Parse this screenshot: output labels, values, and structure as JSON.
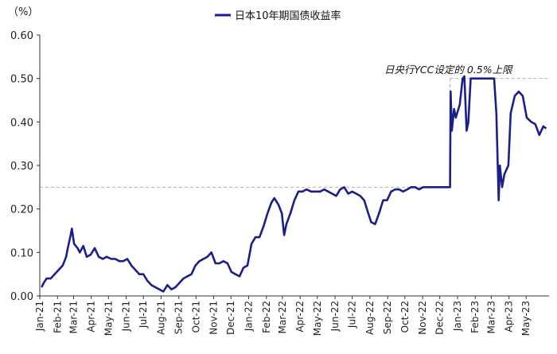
{
  "chart_data": {
    "type": "line",
    "unit_label": "（%）",
    "legend": {
      "label": "日本10年期国债收益率",
      "position": "top-center"
    },
    "ylim": [
      0,
      0.6
    ],
    "yticks": [
      "0.00",
      "0.10",
      "0.20",
      "0.30",
      "0.40",
      "0.50",
      "0.60"
    ],
    "yticks_values": [
      0,
      0.1,
      0.2,
      0.3,
      0.4,
      0.5,
      0.6
    ],
    "x_tick_labels": [
      "Jan-21",
      "Feb-21",
      "Mar-21",
      "Apr-21",
      "May-21",
      "Jun-21",
      "Jul-21",
      "Aug-21",
      "Sep-21",
      "Oct-21",
      "Nov-21",
      "Dec-21",
      "Jan-22",
      "Feb-22",
      "Mar-22",
      "Apr-22",
      "May-22",
      "Jun-22",
      "Jul-22",
      "Aug-22",
      "Sep-22",
      "Oct-22",
      "Nov-22",
      "Dec-22",
      "Jan-23",
      "Feb-23",
      "Mar-23",
      "Apr-23",
      "May-23"
    ],
    "x_range": [
      "2021-01-01",
      "2023-06-10"
    ],
    "grid": false,
    "series": [
      {
        "name": "日本10年期国债收益率",
        "color": "#1a1f8a",
        "points": [
          [
            "2021-01-04",
            0.02
          ],
          [
            "2021-01-08",
            0.03
          ],
          [
            "2021-01-13",
            0.04
          ],
          [
            "2021-01-20",
            0.04
          ],
          [
            "2021-01-27",
            0.05
          ],
          [
            "2021-02-03",
            0.06
          ],
          [
            "2021-02-10",
            0.07
          ],
          [
            "2021-02-16",
            0.09
          ],
          [
            "2021-02-19",
            0.11
          ],
          [
            "2021-02-24",
            0.14
          ],
          [
            "2021-02-26",
            0.155
          ],
          [
            "2021-03-02",
            0.12
          ],
          [
            "2021-03-08",
            0.11
          ],
          [
            "2021-03-12",
            0.1
          ],
          [
            "2021-03-18",
            0.115
          ],
          [
            "2021-03-24",
            0.09
          ],
          [
            "2021-03-31",
            0.095
          ],
          [
            "2021-04-07",
            0.11
          ],
          [
            "2021-04-14",
            0.09
          ],
          [
            "2021-04-21",
            0.085
          ],
          [
            "2021-04-28",
            0.09
          ],
          [
            "2021-05-06",
            0.085
          ],
          [
            "2021-05-13",
            0.085
          ],
          [
            "2021-05-20",
            0.08
          ],
          [
            "2021-05-27",
            0.08
          ],
          [
            "2021-06-03",
            0.085
          ],
          [
            "2021-06-10",
            0.07
          ],
          [
            "2021-06-17",
            0.06
          ],
          [
            "2021-06-24",
            0.05
          ],
          [
            "2021-07-01",
            0.05
          ],
          [
            "2021-07-08",
            0.035
          ],
          [
            "2021-07-15",
            0.025
          ],
          [
            "2021-07-22",
            0.02
          ],
          [
            "2021-07-29",
            0.015
          ],
          [
            "2021-08-05",
            0.01
          ],
          [
            "2021-08-12",
            0.025
          ],
          [
            "2021-08-19",
            0.015
          ],
          [
            "2021-08-26",
            0.02
          ],
          [
            "2021-09-02",
            0.03
          ],
          [
            "2021-09-09",
            0.04
          ],
          [
            "2021-09-16",
            0.045
          ],
          [
            "2021-09-23",
            0.05
          ],
          [
            "2021-09-30",
            0.07
          ],
          [
            "2021-10-07",
            0.08
          ],
          [
            "2021-10-14",
            0.085
          ],
          [
            "2021-10-21",
            0.09
          ],
          [
            "2021-10-28",
            0.1
          ],
          [
            "2021-11-04",
            0.075
          ],
          [
            "2021-11-11",
            0.075
          ],
          [
            "2021-11-18",
            0.08
          ],
          [
            "2021-11-25",
            0.075
          ],
          [
            "2021-12-02",
            0.055
          ],
          [
            "2021-12-09",
            0.05
          ],
          [
            "2021-12-16",
            0.045
          ],
          [
            "2021-12-23",
            0.065
          ],
          [
            "2021-12-30",
            0.07
          ],
          [
            "2022-01-06",
            0.12
          ],
          [
            "2022-01-13",
            0.135
          ],
          [
            "2022-01-20",
            0.135
          ],
          [
            "2022-01-27",
            0.16
          ],
          [
            "2022-02-03",
            0.19
          ],
          [
            "2022-02-10",
            0.215
          ],
          [
            "2022-02-15",
            0.225
          ],
          [
            "2022-02-22",
            0.21
          ],
          [
            "2022-02-28",
            0.19
          ],
          [
            "2022-03-04",
            0.14
          ],
          [
            "2022-03-08",
            0.165
          ],
          [
            "2022-03-15",
            0.19
          ],
          [
            "2022-03-22",
            0.22
          ],
          [
            "2022-03-29",
            0.24
          ],
          [
            "2022-04-05",
            0.24
          ],
          [
            "2022-04-12",
            0.245
          ],
          [
            "2022-04-20",
            0.24
          ],
          [
            "2022-04-27",
            0.24
          ],
          [
            "2022-05-06",
            0.24
          ],
          [
            "2022-05-13",
            0.245
          ],
          [
            "2022-05-20",
            0.24
          ],
          [
            "2022-05-27",
            0.235
          ],
          [
            "2022-06-03",
            0.23
          ],
          [
            "2022-06-10",
            0.245
          ],
          [
            "2022-06-17",
            0.25
          ],
          [
            "2022-06-24",
            0.235
          ],
          [
            "2022-07-01",
            0.24
          ],
          [
            "2022-07-08",
            0.235
          ],
          [
            "2022-07-15",
            0.23
          ],
          [
            "2022-07-22",
            0.22
          ],
          [
            "2022-07-29",
            0.19
          ],
          [
            "2022-08-03",
            0.17
          ],
          [
            "2022-08-10",
            0.165
          ],
          [
            "2022-08-17",
            0.19
          ],
          [
            "2022-08-24",
            0.22
          ],
          [
            "2022-08-31",
            0.22
          ],
          [
            "2022-09-07",
            0.24
          ],
          [
            "2022-09-14",
            0.245
          ],
          [
            "2022-09-21",
            0.245
          ],
          [
            "2022-09-28",
            0.24
          ],
          [
            "2022-10-05",
            0.245
          ],
          [
            "2022-10-12",
            0.25
          ],
          [
            "2022-10-19",
            0.25
          ],
          [
            "2022-10-26",
            0.245
          ],
          [
            "2022-11-02",
            0.25
          ],
          [
            "2022-11-09",
            0.25
          ],
          [
            "2022-11-16",
            0.25
          ],
          [
            "2022-11-24",
            0.25
          ],
          [
            "2022-12-01",
            0.25
          ],
          [
            "2022-12-08",
            0.25
          ],
          [
            "2022-12-15",
            0.25
          ],
          [
            "2022-12-19",
            0.25
          ],
          [
            "2022-12-20",
            0.47
          ],
          [
            "2022-12-22",
            0.38
          ],
          [
            "2022-12-26",
            0.43
          ],
          [
            "2022-12-29",
            0.41
          ],
          [
            "2023-01-05",
            0.44
          ],
          [
            "2023-01-10",
            0.5
          ],
          [
            "2023-01-13",
            0.505
          ],
          [
            "2023-01-17",
            0.38
          ],
          [
            "2023-01-20",
            0.4
          ],
          [
            "2023-01-24",
            0.5
          ],
          [
            "2023-01-31",
            0.5
          ],
          [
            "2023-02-06",
            0.5
          ],
          [
            "2023-02-14",
            0.5
          ],
          [
            "2023-02-21",
            0.5
          ],
          [
            "2023-02-28",
            0.5
          ],
          [
            "2023-03-06",
            0.5
          ],
          [
            "2023-03-10",
            0.42
          ],
          [
            "2023-03-14",
            0.22
          ],
          [
            "2023-03-16",
            0.3
          ],
          [
            "2023-03-20",
            0.25
          ],
          [
            "2023-03-24",
            0.28
          ],
          [
            "2023-03-31",
            0.3
          ],
          [
            "2023-04-04",
            0.42
          ],
          [
            "2023-04-11",
            0.46
          ],
          [
            "2023-04-18",
            0.47
          ],
          [
            "2023-04-25",
            0.46
          ],
          [
            "2023-05-02",
            0.41
          ],
          [
            "2023-05-10",
            0.4
          ],
          [
            "2023-05-17",
            0.395
          ],
          [
            "2023-05-24",
            0.37
          ],
          [
            "2023-05-31",
            0.39
          ],
          [
            "2023-06-05",
            0.385
          ]
        ]
      }
    ],
    "reference_lines": [
      {
        "y": 0.25,
        "x_start": "2021-01-01",
        "x_end": "2022-12-19",
        "style": "dashed",
        "color": "#b0b0b0"
      },
      {
        "y": 0.5,
        "x_start": "2022-12-19",
        "x_end": "2023-06-10",
        "style": "dashed",
        "color": "#b0b0b0"
      },
      {
        "x": "2022-12-19",
        "y_start": 0.25,
        "y_end": 0.5,
        "style": "dashed",
        "color": "#b0b0b0"
      }
    ],
    "annotations": [
      {
        "text": "日央行YCC设定的 0.5%上限",
        "x": "2023-03-01",
        "y": 0.52
      }
    ]
  }
}
